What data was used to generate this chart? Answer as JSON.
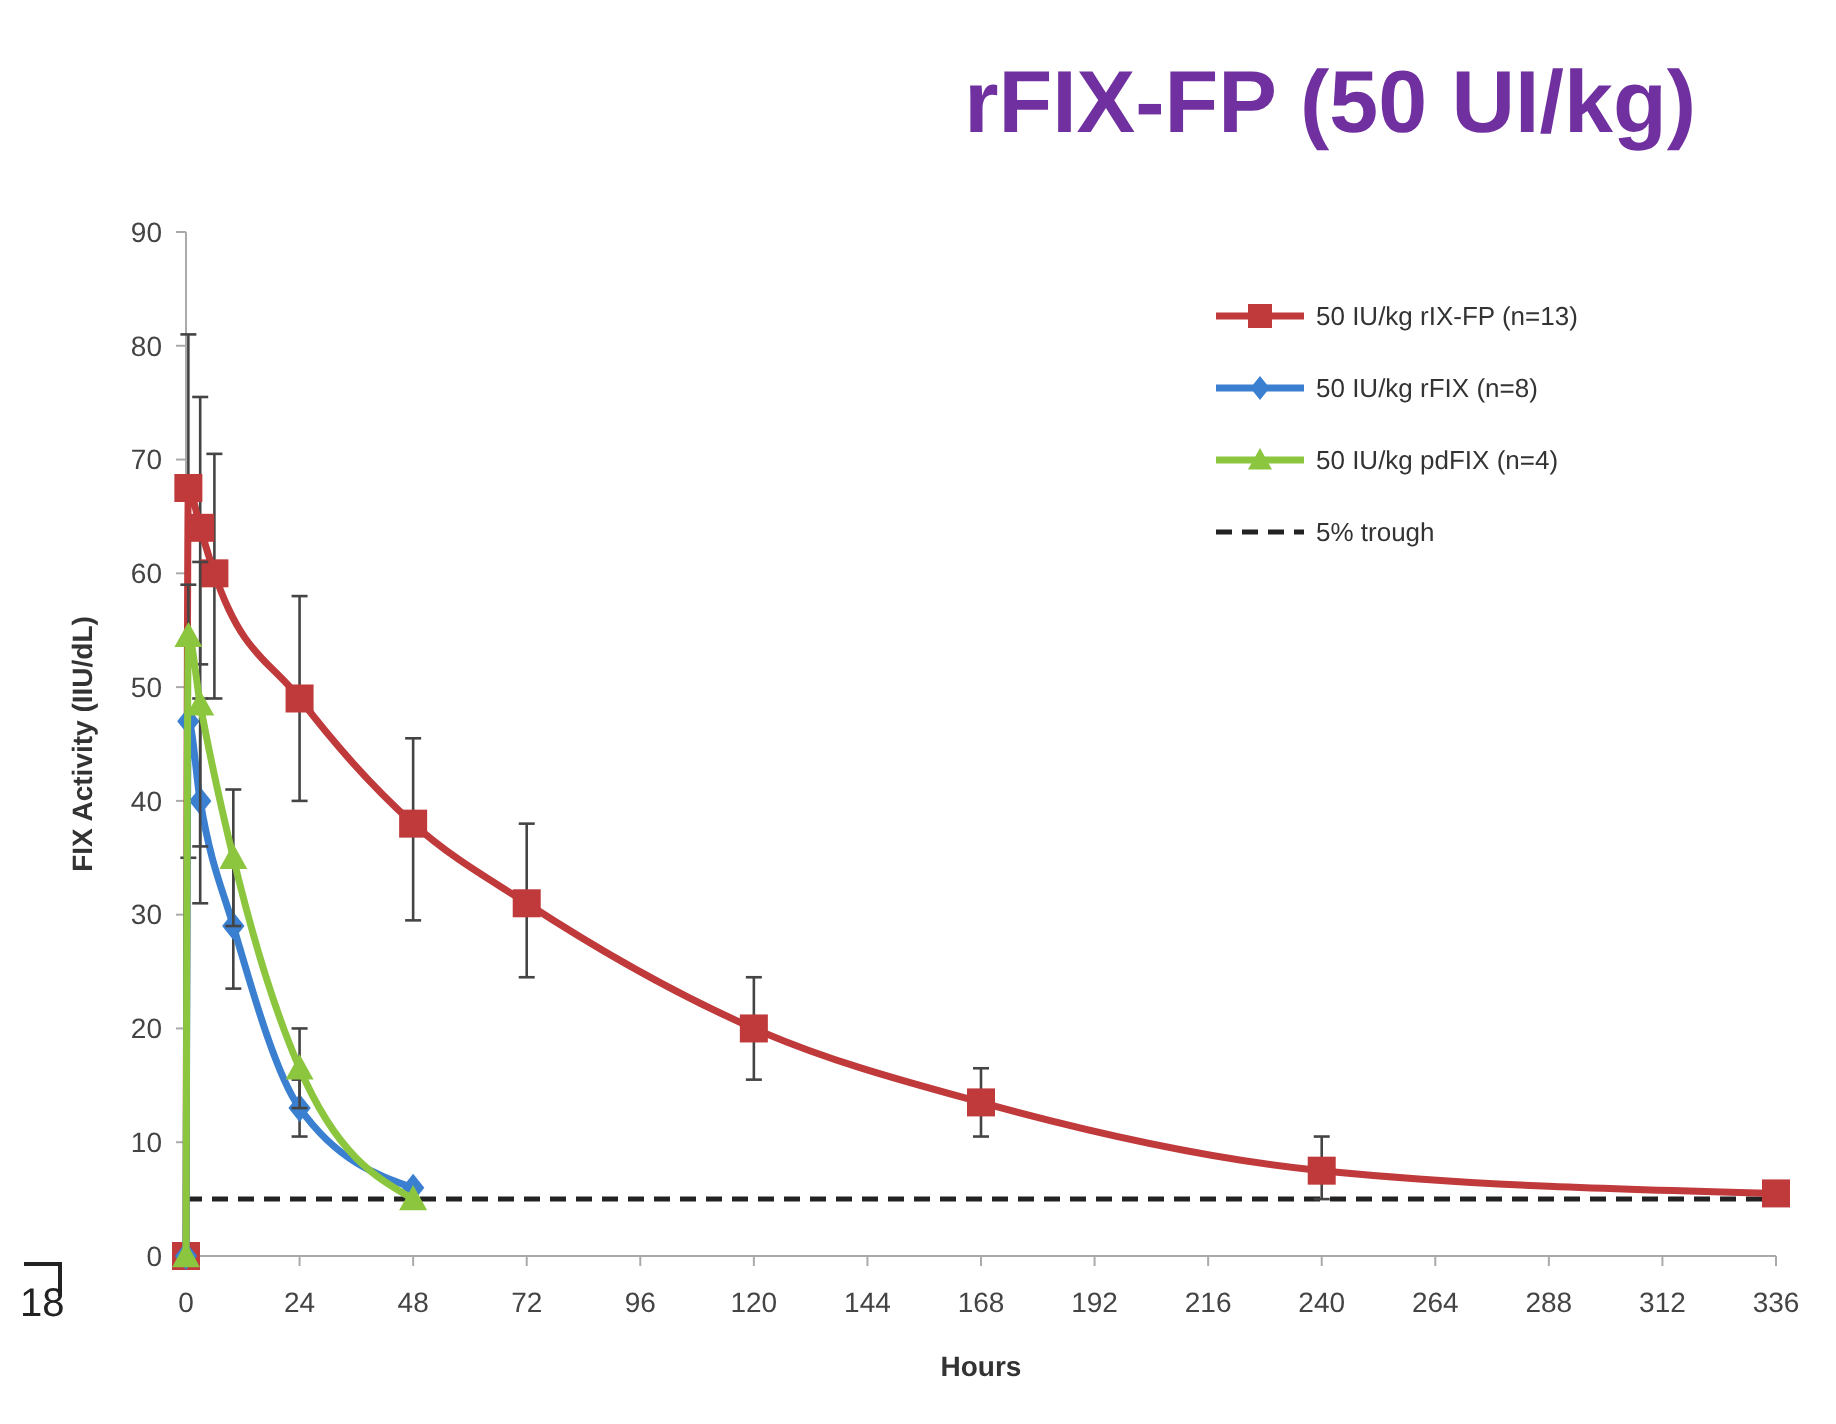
{
  "chart_data": {
    "type": "line",
    "title": "rFIX-FP (50 UI/kg)",
    "xlabel": "Hours",
    "ylabel": "FIX Activity (IIU/dL)",
    "xlim": [
      0,
      336
    ],
    "xticks": [
      0,
      24,
      48,
      72,
      96,
      120,
      144,
      168,
      192,
      216,
      240,
      264,
      288,
      312,
      336
    ],
    "ylim": [
      0,
      90
    ],
    "yticks": [
      0,
      10,
      20,
      30,
      40,
      50,
      60,
      70,
      80,
      90
    ],
    "series": [
      {
        "name": "50 IU/kg rIX-FP (n=13)",
        "color": "#c0393b",
        "marker": "square",
        "x": [
          0,
          0.5,
          3,
          6,
          24,
          48,
          72,
          120,
          168,
          240,
          336
        ],
        "values": [
          0,
          67.5,
          64,
          60,
          49,
          38,
          31,
          20,
          13.5,
          7.5,
          5.5
        ],
        "errors": [
          null,
          [
            54,
            81
          ],
          [
            52,
            75.5
          ],
          [
            49,
            70.5
          ],
          [
            40,
            58
          ],
          [
            29.5,
            45.5
          ],
          [
            24.5,
            38
          ],
          [
            15.5,
            24.5
          ],
          [
            10.5,
            16.5
          ],
          [
            5,
            10.5
          ],
          null
        ]
      },
      {
        "name": "50 IU/kg rFIX (n=8)",
        "color": "#3a7fd0",
        "marker": "diamond",
        "x": [
          0,
          0.5,
          3,
          10,
          24,
          48
        ],
        "values": [
          0,
          47,
          40,
          29,
          13,
          6
        ],
        "errors": [
          null,
          [
            35,
            59
          ],
          [
            31,
            49
          ],
          [
            23.5,
            34.5
          ],
          [
            10.5,
            15.5
          ],
          null
        ]
      },
      {
        "name": "50 IU/kg pdFIX (n=4)",
        "color": "#8cc63f",
        "marker": "triangle",
        "x": [
          0,
          0.5,
          3,
          10,
          24,
          48
        ],
        "values": [
          0,
          54.5,
          48.5,
          35,
          16.5,
          5
        ],
        "errors": [
          null,
          null,
          [
            36,
            61
          ],
          [
            29,
            41
          ],
          [
            13,
            20
          ],
          null
        ]
      }
    ],
    "ref_lines": [
      {
        "axis": "y",
        "value": 5,
        "label": "5% trough",
        "color": "#222222",
        "line_style": "dashed"
      }
    ],
    "legend": "top right",
    "grid": false,
    "annotations": [
      "18"
    ]
  }
}
